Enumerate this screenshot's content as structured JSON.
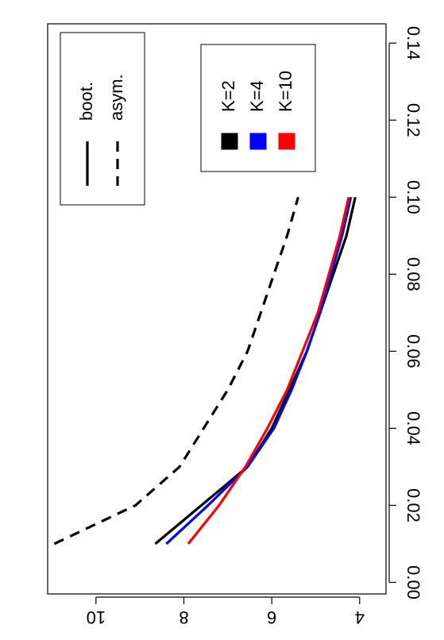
{
  "chart_data": {
    "type": "line",
    "orientation": "rotated-90-clockwise",
    "title": "",
    "xlabel": "",
    "ylabel": "",
    "xlim": [
      -0.003,
      0.145
    ],
    "ylim": [
      3.4,
      11.1
    ],
    "x_ticks": [
      0.0,
      0.02,
      0.04,
      0.06,
      0.08,
      0.1,
      0.12,
      0.14
    ],
    "x_tick_labels": [
      "0.00",
      "0.02",
      "0.04",
      "0.06",
      "0.08",
      "0.10",
      "0.12",
      "0.14"
    ],
    "y_ticks": [
      4,
      6,
      8,
      10
    ],
    "y_tick_labels": [
      "4",
      "6",
      "8",
      "10"
    ],
    "grid": false,
    "series": [
      {
        "name": "asym.",
        "color": "#000000",
        "dash": "dashed",
        "x": [
          0.01,
          0.02,
          0.03,
          0.04,
          0.05,
          0.06,
          0.07,
          0.08,
          0.09,
          0.1
        ],
        "y": [
          10.95,
          9.1,
          8.1,
          7.55,
          7.0,
          6.55,
          6.25,
          5.95,
          5.65,
          5.4
        ]
      },
      {
        "name": "K=2",
        "color": "#000000",
        "dash": "solid",
        "x": [
          0.01,
          0.02,
          0.03,
          0.04,
          0.05,
          0.06,
          0.07,
          0.08,
          0.09,
          0.1
        ],
        "y": [
          8.65,
          7.6,
          6.55,
          6.0,
          5.6,
          5.2,
          4.9,
          4.6,
          4.3,
          4.1
        ]
      },
      {
        "name": "K=4",
        "color": "#0000ff",
        "dash": "solid",
        "x": [
          0.01,
          0.02,
          0.03,
          0.04,
          0.05,
          0.06,
          0.07,
          0.08,
          0.09,
          0.1
        ],
        "y": [
          8.4,
          7.45,
          6.55,
          5.95,
          5.55,
          5.2,
          4.9,
          4.65,
          4.4,
          4.2
        ]
      },
      {
        "name": "K=10",
        "color": "#ff0000",
        "dash": "solid",
        "x": [
          0.01,
          0.02,
          0.03,
          0.04,
          0.05,
          0.06,
          0.07,
          0.08,
          0.09,
          0.1
        ],
        "y": [
          7.9,
          7.2,
          6.6,
          6.1,
          5.65,
          5.3,
          4.95,
          4.7,
          4.45,
          4.25
        ]
      }
    ],
    "legends": [
      {
        "placement": "top-left",
        "entries": [
          {
            "label": "boot.",
            "dash": "solid",
            "color": "#000000"
          },
          {
            "label": "asym.",
            "dash": "dashed",
            "color": "#000000"
          }
        ]
      },
      {
        "placement": "top-right",
        "entries": [
          {
            "label": "K=2",
            "color": "#000000"
          },
          {
            "label": "K=4",
            "color": "#0000ff"
          },
          {
            "label": "K=10",
            "color": "#ff0000"
          }
        ]
      }
    ]
  }
}
